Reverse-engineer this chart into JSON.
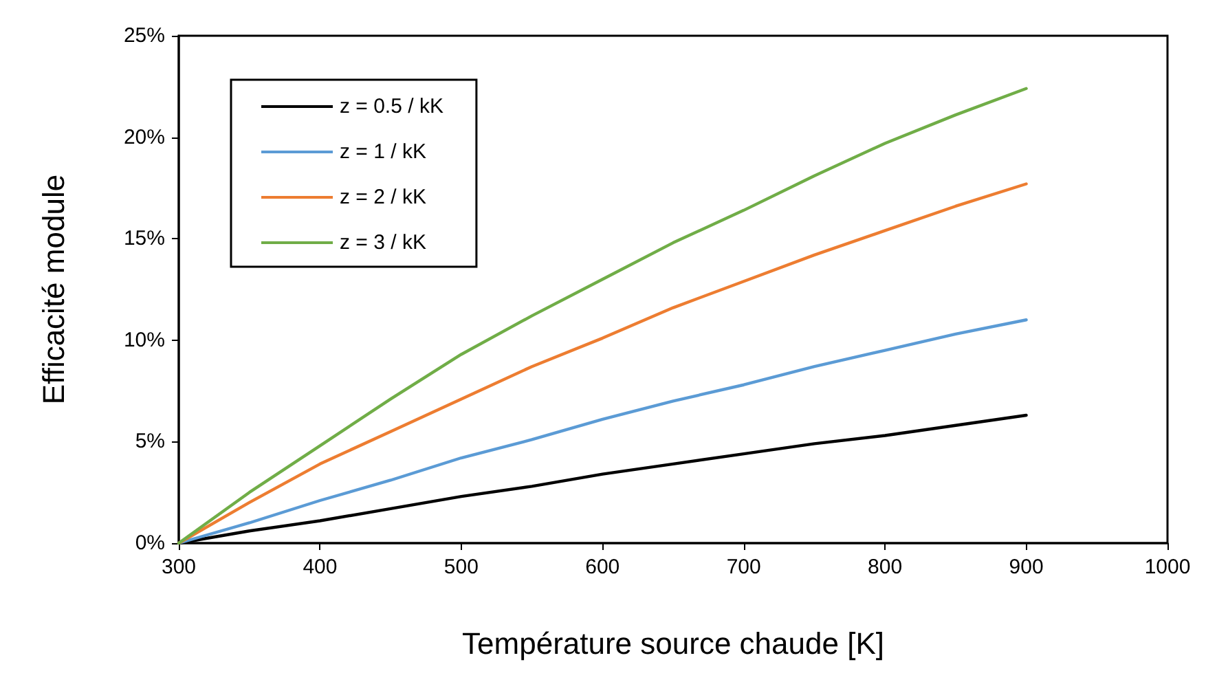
{
  "chart_data": {
    "type": "line",
    "xlabel": "Température source chaude [K]",
    "ylabel": "Efficacité module",
    "x": [
      300,
      350,
      400,
      450,
      500,
      550,
      600,
      650,
      700,
      750,
      800,
      850,
      900
    ],
    "series": [
      {
        "name": "z = 0.5 / kK",
        "color": "#000000",
        "values": [
          0,
          0.6,
          1.1,
          1.7,
          2.3,
          2.8,
          3.4,
          3.9,
          4.4,
          4.9,
          5.3,
          5.8,
          6.3
        ]
      },
      {
        "name": "z = 1 / kK",
        "color": "#5b9bd5",
        "values": [
          0,
          1.0,
          2.1,
          3.1,
          4.2,
          5.1,
          6.1,
          7.0,
          7.8,
          8.7,
          9.5,
          10.3,
          11.0
        ]
      },
      {
        "name": "z = 2 / kK",
        "color": "#ed7d31",
        "values": [
          0,
          2.0,
          3.9,
          5.5,
          7.1,
          8.7,
          10.1,
          11.6,
          12.9,
          14.2,
          15.4,
          16.6,
          17.7
        ]
      },
      {
        "name": "z = 3 / kK",
        "color": "#70ad47",
        "values": [
          0,
          2.5,
          4.8,
          7.1,
          9.3,
          11.2,
          13.0,
          14.8,
          16.4,
          18.1,
          19.7,
          21.1,
          22.4
        ]
      }
    ],
    "xlim": [
      300,
      1000
    ],
    "xticks": [
      300,
      400,
      500,
      600,
      700,
      800,
      900,
      1000
    ],
    "ylim": [
      0,
      25
    ],
    "yticks": [
      {
        "value": 0,
        "label": "0%"
      },
      {
        "value": 5,
        "label": "5%"
      },
      {
        "value": 10,
        "label": "10%"
      },
      {
        "value": 15,
        "label": "15%"
      },
      {
        "value": 20,
        "label": "20%"
      },
      {
        "value": 25,
        "label": "25%"
      }
    ],
    "grid": false,
    "legend": "top left",
    "marker": "none",
    "line_style": "solid"
  }
}
